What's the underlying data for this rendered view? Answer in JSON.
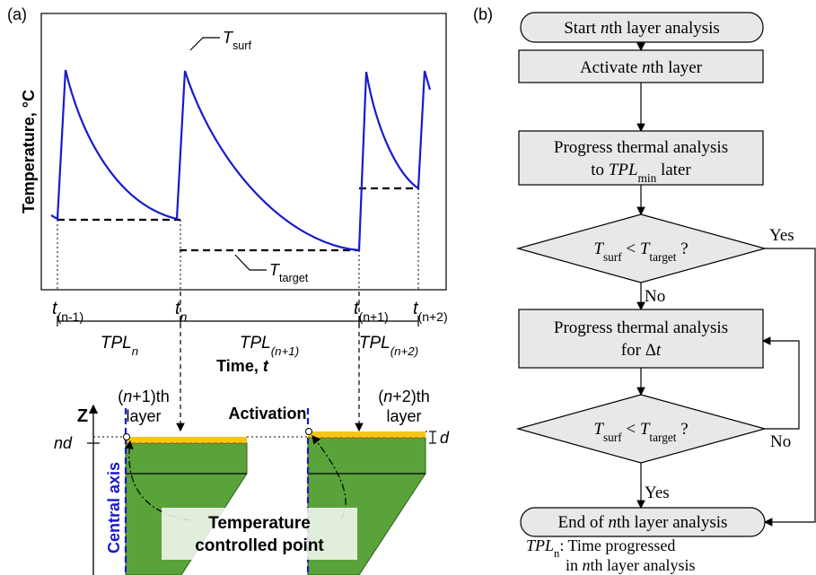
{
  "panel_a": {
    "label": "(a)",
    "y_axis_label": "Temperature, °C",
    "t_surf": {
      "symbol": "T",
      "sub": "surf"
    },
    "t_target": {
      "symbol": "T",
      "sub": "target"
    },
    "time_ticks": [
      {
        "symbol": "t",
        "sub": "(n-1)"
      },
      {
        "symbol": "t",
        "sub": "n"
      },
      {
        "symbol": "t",
        "sub": "(n+1)"
      },
      {
        "symbol": "t",
        "sub": "(n+2)"
      }
    ],
    "periods": [
      {
        "symbol": "TPL",
        "sub": "n"
      },
      {
        "symbol": "TPL",
        "sub": "(n+1)"
      },
      {
        "symbol": "TPL",
        "sub": "(n+2)"
      }
    ],
    "x_axis_label": {
      "text": "Time, ",
      "symbol": "t"
    },
    "z_label": "Z",
    "nd": "nd",
    "d": "d",
    "layers": [
      {
        "open": "(",
        "n": "n",
        "rest": "+1)th",
        "line2": "layer"
      },
      {
        "open": "(",
        "n": "n",
        "rest": "+2)th",
        "line2": "layer"
      }
    ],
    "activation": "Activation",
    "central_axis": "Central axis",
    "control_point": [
      "Temperature",
      "controlled point"
    ]
  },
  "panel_b": {
    "label": "(b)",
    "start": [
      "Start ",
      "n",
      "th layer analysis"
    ],
    "activate": [
      "Activate ",
      "n",
      "th layer"
    ],
    "progress_min": {
      "line1": "Progress thermal analysis",
      "line2": [
        "to ",
        "TPL",
        "min",
        " later"
      ]
    },
    "decisions": [
      [
        "T",
        "surf",
        " < ",
        "T",
        "target",
        " ?"
      ],
      [
        "T",
        "surf",
        " < ",
        "T",
        "target",
        " ?"
      ]
    ],
    "yes_1": "Yes",
    "no_1": "No",
    "no_2": "No",
    "yes_2": "Yes",
    "progress_dt": {
      "line1": "Progress thermal analysis",
      "line2": [
        "for Δ",
        "t"
      ]
    },
    "end": [
      "End of ",
      "n",
      "th layer analysis"
    ],
    "note": {
      "term": [
        "TPL",
        "n"
      ],
      "line1": ": Time progressed",
      "line2": [
        "in ",
        "n",
        "th layer analysis"
      ]
    }
  }
}
